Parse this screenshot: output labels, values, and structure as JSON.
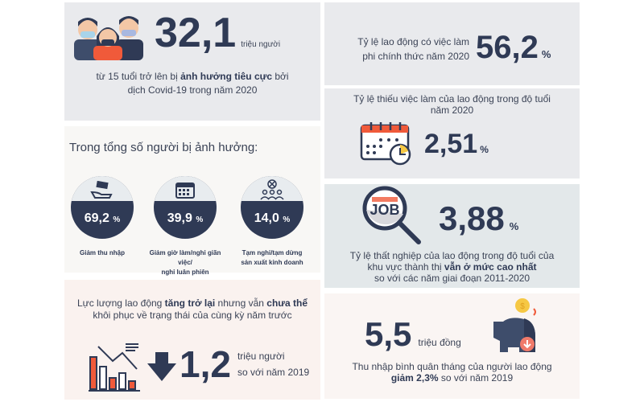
{
  "colors": {
    "navy": "#2f3a55",
    "orange": "#f05a3a",
    "gray_panel": "#e9eaed",
    "blue_panel": "#e3e8ea",
    "pink_panel": "#faf2ef"
  },
  "affected": {
    "value": "32,1",
    "unit": "triệu người",
    "line1_pre": "từ 15 tuổi trở lên bị ",
    "line1_bold": "ảnh hưởng tiêu cực",
    "line1_post": " bởi",
    "line2": "dịch Covid-19 trong năm 2020",
    "icon": "masked-people-icon"
  },
  "breakdown": {
    "title": "Trong tổng số người bị ảnh hưởng:",
    "items": [
      {
        "value": "69,2",
        "unit": "%",
        "label1": "Giảm thu nhập",
        "label2": "",
        "icon": "money-hand-icon"
      },
      {
        "value": "39,9",
        "unit": "%",
        "label1": "Giảm giờ làm/nghỉ giãn việc/",
        "label2": "nghỉ luân phiên",
        "icon": "calendar-icon"
      },
      {
        "value": "14,0",
        "unit": "%",
        "label1": "Tạm nghỉ/tạm dừng",
        "label2": "sản xuất kinh doanh",
        "icon": "group-cancel-icon"
      }
    ]
  },
  "labor_force": {
    "l1_a": "Lực lượng lao động ",
    "l1_b": "tăng trở lại",
    "l1_c": " nhưng vẫn ",
    "l1_d": "chưa thể",
    "line2": "khôi phục về trạng thái của cùng kỳ năm trước",
    "value": "1,2",
    "unit": "triệu người",
    "compare": "so với năm 2019",
    "icon": "declining-chart-icon",
    "arrow": "down-arrow-icon"
  },
  "informal": {
    "line1": "Tỷ lệ lao động có việc làm",
    "line2": "phi chính thức năm 2020",
    "value": "56,2",
    "unit": "%"
  },
  "underemployment": {
    "line1": "Tỷ lệ thiếu việc làm của lao động trong độ tuổi",
    "line2": "năm 2020",
    "value": "2,51",
    "unit": "%",
    "icon": "calendar-clock-icon"
  },
  "unemployment": {
    "value": "3,88",
    "unit": "%",
    "icon_text": "JOB",
    "line1": "Tỷ lệ thất nghiệp của lao động trong độ tuổi của",
    "line2_pre": "khu vực thành thị ",
    "line2_bold": "vẫn ở mức cao nhất",
    "line3": "so với các năm giai đoạn 2011-2020"
  },
  "income": {
    "value": "5,5",
    "unit": "triệu đồng",
    "line1": "Thu nhập bình quân tháng của người lao động",
    "line2_bold": "giảm 2,3%",
    "line2_post": " so với năm 2019",
    "icon": "piggy-bank-icon"
  }
}
